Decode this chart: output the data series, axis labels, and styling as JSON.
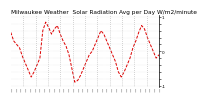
{
  "title": "Milwaukee Weather  Solar Radiation Avg per Day W/m2/minute",
  "title_fontsize": 4.2,
  "bg_color": "#ffffff",
  "line_color": "#dd0000",
  "grid_color": "#aaaaaa",
  "ylim": [
    -1.05,
    1.05
  ],
  "vline_positions": [
    0.0833,
    0.1667,
    0.25,
    0.3333,
    0.4167,
    0.5,
    0.5833,
    0.6667,
    0.75,
    0.8333,
    0.9167
  ],
  "num_points": 52,
  "y_ticks": [
    1.0,
    0.8,
    0.6,
    0.4,
    0.2,
    0.0,
    -0.2,
    -0.4,
    -0.6,
    -0.8,
    -1.0
  ],
  "y_tick_labels": [
    "1",
    "",
    "",
    "",
    "",
    "0",
    "",
    "",
    "",
    "",
    "-1"
  ],
  "signal": [
    0.55,
    0.3,
    0.2,
    0.1,
    -0.15,
    -0.35,
    -0.55,
    -0.75,
    -0.6,
    -0.4,
    -0.2,
    0.6,
    0.85,
    0.7,
    0.5,
    0.65,
    0.75,
    0.5,
    0.3,
    0.15,
    -0.1,
    -0.5,
    -0.9,
    -0.85,
    -0.7,
    -0.5,
    -0.3,
    -0.1,
    0.0,
    0.2,
    0.4,
    0.6,
    0.5,
    0.3,
    0.1,
    -0.1,
    -0.3,
    -0.6,
    -0.75,
    -0.6,
    -0.4,
    -0.2,
    0.1,
    0.3,
    0.55,
    0.75,
    0.65,
    0.4,
    0.2,
    0.0,
    -0.2,
    -0.1
  ]
}
